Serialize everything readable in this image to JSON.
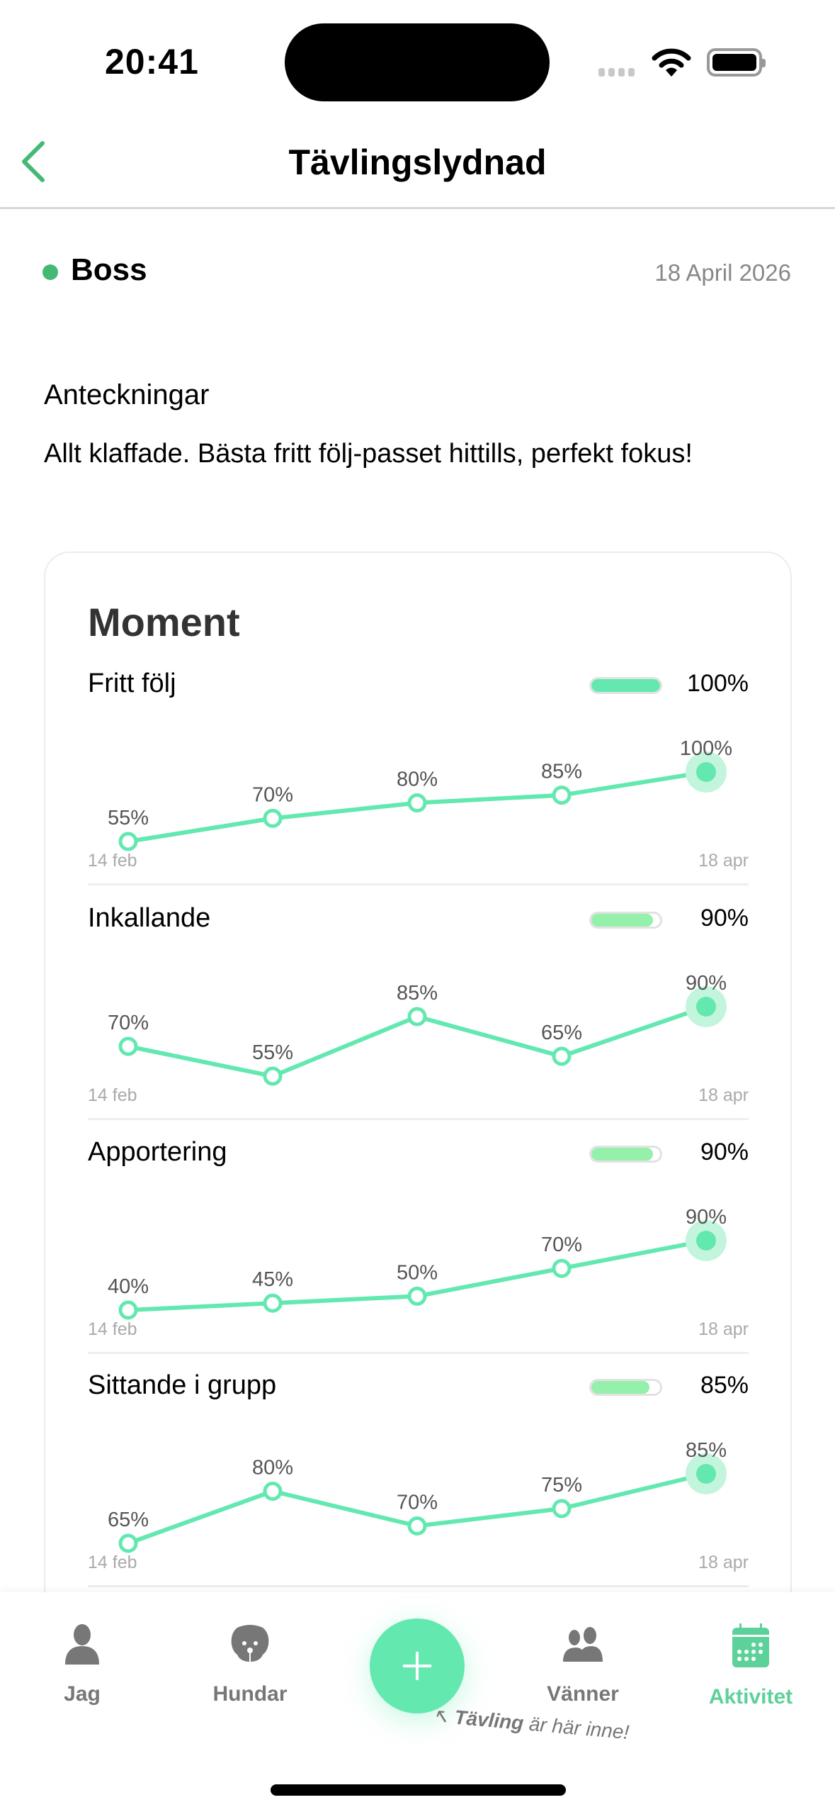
{
  "status_bar": {
    "time": "20:41"
  },
  "nav": {
    "title": "Tävlingslydnad",
    "back_icon": "chevron-left-icon"
  },
  "session": {
    "dog": "Boss",
    "date": "18 April 2026",
    "dot_color": "#44b974"
  },
  "notes": {
    "heading": "Anteckningar",
    "text": "Allt klaffade. Bästa fritt följ-passet hittills, perfekt fokus!"
  },
  "card": {
    "title": "Moment"
  },
  "colors": {
    "accent": "#63e8b0",
    "bar_full": "#63e8b0",
    "bar_partial": "#94f0aa",
    "active_tab": "#5dd19a"
  },
  "chart_data": [
    {
      "type": "line",
      "title": "Fritt följ",
      "current": "100%",
      "current_value": 100,
      "x_start": "14 feb",
      "x_end": "18 apr",
      "values": [
        55,
        70,
        80,
        85,
        100
      ],
      "labels": [
        "55%",
        "70%",
        "80%",
        "85%",
        "100%"
      ]
    },
    {
      "type": "line",
      "title": "Inkallande",
      "current": "90%",
      "current_value": 90,
      "x_start": "14 feb",
      "x_end": "18 apr",
      "values": [
        70,
        55,
        85,
        65,
        90
      ],
      "labels": [
        "70%",
        "55%",
        "85%",
        "65%",
        "90%"
      ]
    },
    {
      "type": "line",
      "title": "Apportering",
      "current": "90%",
      "current_value": 90,
      "x_start": "14 feb",
      "x_end": "18 apr",
      "values": [
        40,
        45,
        50,
        70,
        90
      ],
      "labels": [
        "40%",
        "45%",
        "50%",
        "70%",
        "90%"
      ]
    },
    {
      "type": "line",
      "title": "Sittande i grupp",
      "current": "85%",
      "current_value": 85,
      "x_start": "14 feb",
      "x_end": "18 apr",
      "values": [
        65,
        80,
        70,
        75,
        85
      ],
      "labels": [
        "65%",
        "80%",
        "70%",
        "75%",
        "85%"
      ]
    }
  ],
  "tabbar": {
    "tabs": [
      {
        "label": "Jag",
        "icon": "person-icon"
      },
      {
        "label": "Hundar",
        "icon": "dog-icon"
      },
      {
        "label": "Vänner",
        "icon": "friends-icon"
      },
      {
        "label": "Aktivitet",
        "icon": "calendar-icon",
        "active": true
      }
    ],
    "fab_icon": "plus-icon",
    "hint_bold": "Tävling",
    "hint_rest": " är här inne!"
  }
}
